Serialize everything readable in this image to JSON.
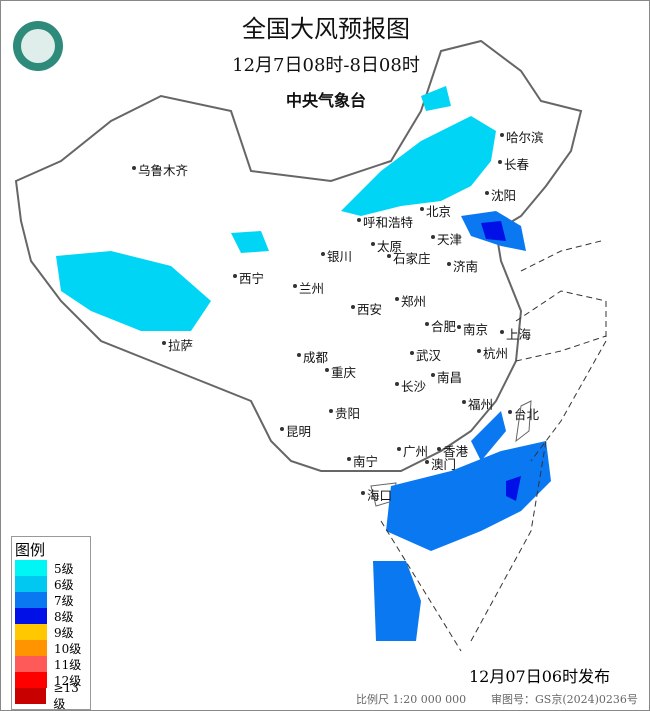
{
  "title": "全国大风预报图",
  "period": "12月7日08时-8日08时",
  "issuer": "中央气象台",
  "legend": {
    "title": "图例",
    "items": [
      {
        "label": "5级",
        "color": "#00f5f5"
      },
      {
        "label": "6级",
        "color": "#00c8f0"
      },
      {
        "label": "7级",
        "color": "#0a78f0"
      },
      {
        "label": "8级",
        "color": "#0010e6"
      },
      {
        "label": "9级",
        "color": "#ffc800"
      },
      {
        "label": "10级",
        "color": "#ff9400"
      },
      {
        "label": "11级",
        "color": "#ff5a5a"
      },
      {
        "label": "12级",
        "color": "#ff0000"
      },
      {
        "label": "≥13级",
        "color": "#c80000"
      }
    ]
  },
  "cities": [
    {
      "name": "哈尔滨"
    },
    {
      "name": "长春"
    },
    {
      "name": "沈阳"
    },
    {
      "name": "北京"
    },
    {
      "name": "天津"
    },
    {
      "name": "呼和浩特"
    },
    {
      "name": "太原"
    },
    {
      "name": "石家庄"
    },
    {
      "name": "济南"
    },
    {
      "name": "银川"
    },
    {
      "name": "西宁"
    },
    {
      "name": "兰州"
    },
    {
      "name": "西安"
    },
    {
      "name": "郑州"
    },
    {
      "name": "合肥"
    },
    {
      "name": "南京"
    },
    {
      "name": "上海"
    },
    {
      "name": "杭州"
    },
    {
      "name": "武汉"
    },
    {
      "name": "成都"
    },
    {
      "name": "重庆"
    },
    {
      "name": "拉萨"
    },
    {
      "name": "南昌"
    },
    {
      "name": "长沙"
    },
    {
      "name": "福州"
    },
    {
      "name": "台北"
    },
    {
      "name": "贵阳"
    },
    {
      "name": "昆明"
    },
    {
      "name": "南宁"
    },
    {
      "name": "广州"
    },
    {
      "name": "香港"
    },
    {
      "name": "澳门"
    },
    {
      "name": "海口"
    },
    {
      "name": "乌鲁木齐"
    }
  ],
  "issued": "12月07日06时发布",
  "scale": "比例尺 1:20 000 000",
  "review_no": "审图号：GS京(2024)0236号"
}
